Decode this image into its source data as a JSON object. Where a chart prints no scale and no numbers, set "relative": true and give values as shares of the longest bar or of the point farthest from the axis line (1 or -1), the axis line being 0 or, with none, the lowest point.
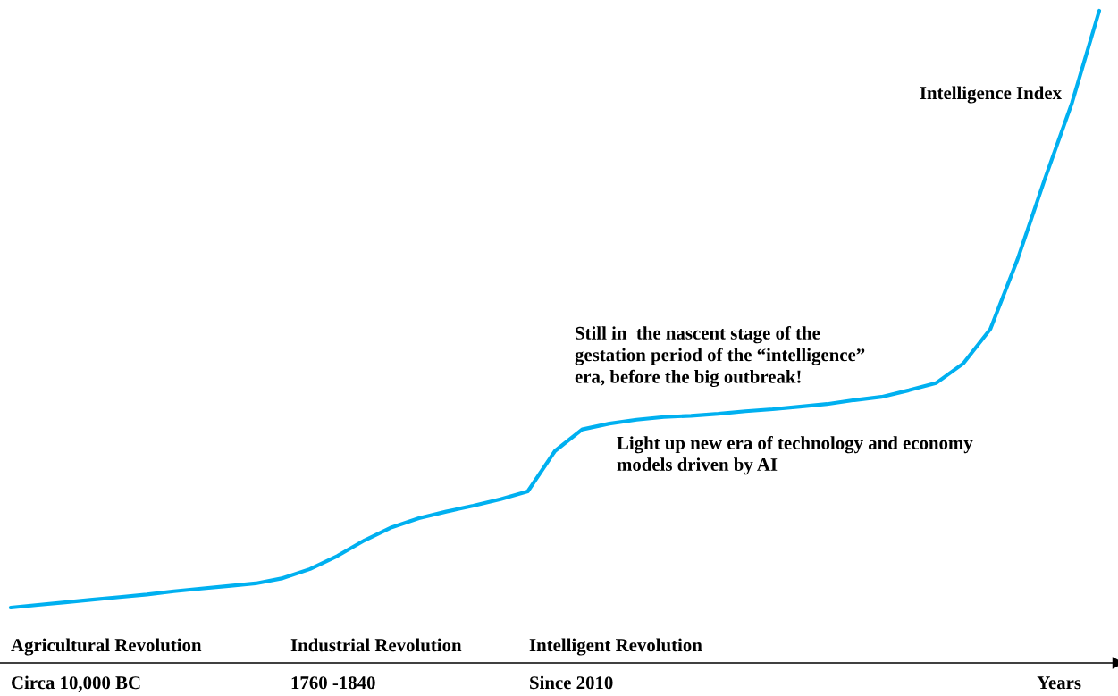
{
  "chart_data": {
    "type": "line",
    "relative": true,
    "xlabel": "Years",
    "categories": [
      null,
      null,
      null,
      null,
      null,
      null,
      null,
      null,
      null,
      null,
      null,
      null,
      null,
      null,
      null,
      null,
      null,
      null,
      null,
      null,
      null,
      null,
      null,
      null,
      null,
      null,
      null,
      null,
      null,
      null,
      null,
      null,
      null,
      null,
      null,
      null,
      null,
      null,
      null,
      null,
      null
    ],
    "series": [
      {
        "color": "#00b0f0",
        "values": [
          0.085,
          0.089,
          0.093,
          0.097,
          0.101,
          0.105,
          0.11,
          0.114,
          0.118,
          0.122,
          0.13,
          0.144,
          0.164,
          0.188,
          0.208,
          0.222,
          0.232,
          0.241,
          0.251,
          0.263,
          0.325,
          0.358,
          0.367,
          0.373,
          0.377,
          0.379,
          0.382,
          0.386,
          0.389,
          0.393,
          0.397,
          0.403,
          0.408,
          0.418,
          0.429,
          0.459,
          0.512,
          0.619,
          0.742,
          0.859,
          1.0
        ]
      }
    ],
    "annotations": [
      "Intelligence Index",
      "Still in  the nascent stage of the\ngestation period of the “intelligence”\nera, before the big outbreak!",
      "Light up new era of technology and economy\nmodels driven by AI",
      "Agricultural Revolution",
      "Circa 10,000 BC",
      "Industrial Revolution",
      "1760 -1840",
      "Intelligent Revolution",
      "Since 2010"
    ],
    "legend": false
  }
}
